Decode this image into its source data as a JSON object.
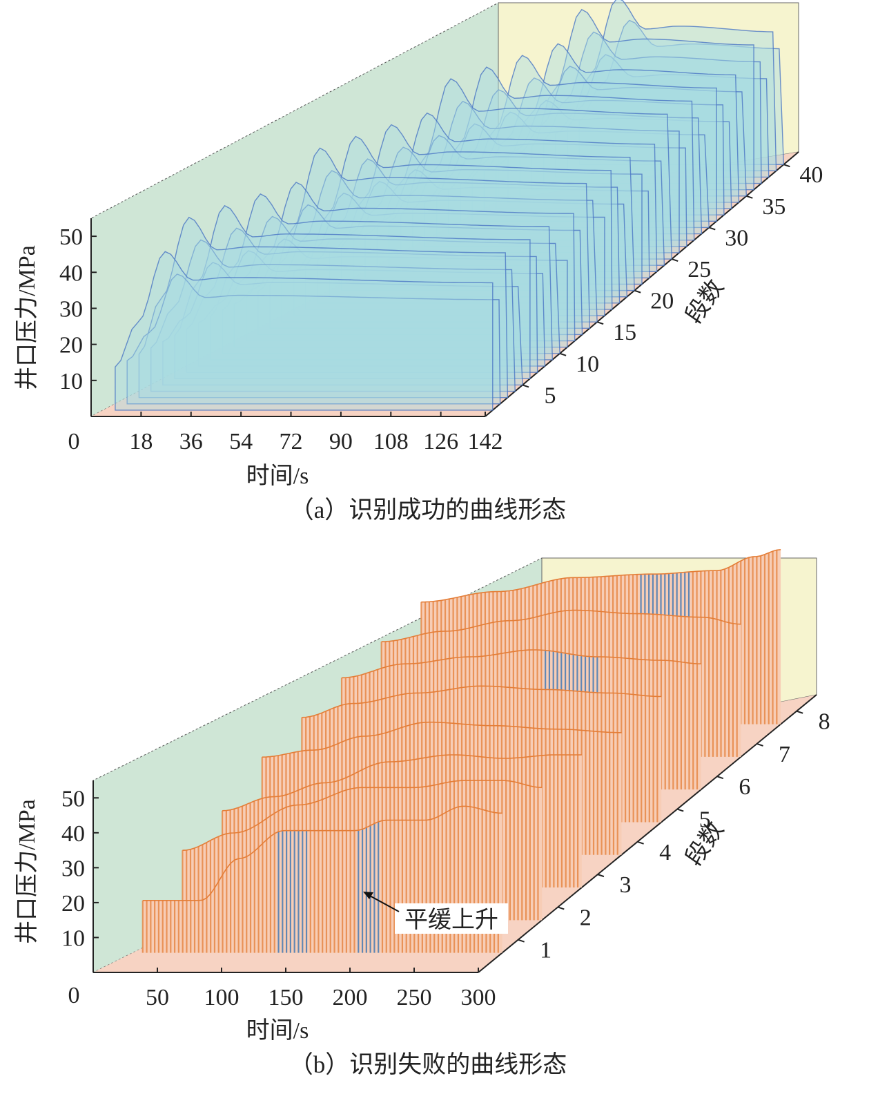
{
  "colors": {
    "back_wall": "#cfe6d6",
    "side_wall": "#f6f4cf",
    "floor": "#f7d3c3",
    "success_fill": "#a9dbe3",
    "success_line": "#4a76c4",
    "fail_orange": "#e47d37",
    "fail_light": "#f7cdb6",
    "fail_blue": "#2f6fb3"
  },
  "chart_data": [
    {
      "id": "a",
      "type": "3d-waterfall-line",
      "caption": "（a）识别成功的曲线形态",
      "xlabel": "时间/s",
      "ylabel": "井口压力/MPa",
      "zlabel": "段数",
      "x_origin_label": "0",
      "x_ticks": [
        "18",
        "36",
        "54",
        "72",
        "90",
        "108",
        "126",
        "142"
      ],
      "x_range": [
        0,
        142
      ],
      "y_ticks": [
        "10",
        "20",
        "30",
        "40",
        "50"
      ],
      "y_range": [
        0,
        55
      ],
      "z_ticks": [
        "5",
        "10",
        "15",
        "20",
        "25",
        "30",
        "35",
        "40"
      ],
      "z_range": [
        0,
        42
      ],
      "series_count": 40,
      "profile_description": "pressure rises steeply to a peak then decays to a plateau; onset shifts later with stage number",
      "peak_pressure_range": [
        30,
        50
      ]
    },
    {
      "id": "b",
      "type": "3d-waterfall-line",
      "caption": "（b）识别失败的曲线形态",
      "xlabel": "时间/s",
      "ylabel": "井口压力/MPa",
      "zlabel": "段数",
      "x_origin_label": "0",
      "x_ticks": [
        "50",
        "100",
        "150",
        "200",
        "250",
        "300"
      ],
      "x_range": [
        0,
        300
      ],
      "y_ticks": [
        "10",
        "20",
        "30",
        "40",
        "50"
      ],
      "y_range": [
        0,
        55
      ],
      "z_ticks": [
        "1",
        "2",
        "3",
        "4",
        "5",
        "6",
        "7",
        "8"
      ],
      "z_range": [
        0,
        8.5
      ],
      "annotation": "平缓上升",
      "series": [
        {
          "stage": 1,
          "x": [
            20,
            65,
            95,
            130,
            185,
            210,
            240,
            270,
            300
          ],
          "y": [
            15,
            15,
            27,
            35,
            35,
            38,
            38,
            42,
            40
          ]
        },
        {
          "stage": 2,
          "x": [
            20,
            60,
            110,
            160,
            200,
            240,
            270,
            300
          ],
          "y": [
            20,
            25,
            33,
            38,
            38,
            40,
            40,
            38
          ]
        },
        {
          "stage": 3,
          "x": [
            20,
            60,
            100,
            150,
            200,
            240,
            280,
            300
          ],
          "y": [
            22,
            26,
            30,
            36,
            38,
            37,
            38,
            38
          ]
        },
        {
          "stage": 4,
          "x": [
            20,
            60,
            100,
            150,
            200,
            250,
            300
          ],
          "y": [
            28,
            30,
            34,
            38,
            37,
            36,
            35
          ]
        },
        {
          "stage": 5,
          "x": [
            20,
            60,
            110,
            160,
            210,
            260,
            300
          ],
          "y": [
            30,
            34,
            37,
            39,
            38,
            37,
            36
          ]
        },
        {
          "stage": 6,
          "x": [
            20,
            70,
            120,
            170,
            220,
            270,
            300
          ],
          "y": [
            32,
            36,
            38,
            40,
            38,
            37,
            36
          ]
        },
        {
          "stage": 7,
          "x": [
            20,
            70,
            120,
            170,
            220,
            270,
            300
          ],
          "y": [
            33,
            36,
            39,
            42,
            41,
            40,
            38
          ]
        },
        {
          "stage": 8,
          "x": [
            20,
            80,
            140,
            200,
            250,
            280,
            300
          ],
          "y": [
            35,
            38,
            42,
            43,
            44,
            48,
            50
          ]
        }
      ]
    }
  ]
}
